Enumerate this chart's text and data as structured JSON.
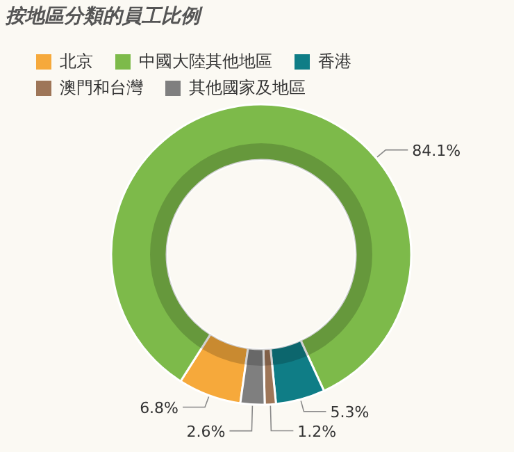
{
  "chart_data": {
    "type": "donut",
    "title": "按地區分類的員工比例",
    "categories": [
      "北京",
      "中國大陸其他地區",
      "香港",
      "澳門和台灣",
      "其他國家及地區"
    ],
    "values": [
      6.8,
      84.1,
      5.3,
      1.2,
      2.6
    ],
    "colors": [
      "#f6a93b",
      "#7dba4a",
      "#0f7d86",
      "#9e7658",
      "#7f7f7f"
    ],
    "value_labels": [
      "6.8%",
      "84.1%",
      "5.3%",
      "1.2%",
      "2.6%"
    ],
    "legend": "top"
  }
}
